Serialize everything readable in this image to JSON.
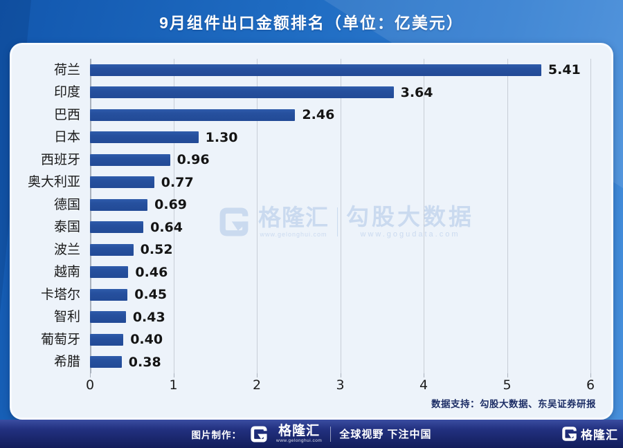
{
  "title": "9月组件出口金额排名（单位：亿美元）",
  "chart_data": {
    "type": "bar",
    "orientation": "horizontal",
    "title": "9月组件出口金额排名（单位：亿美元）",
    "categories": [
      "荷兰",
      "印度",
      "巴西",
      "日本",
      "西班牙",
      "奥大利亚",
      "德国",
      "泰国",
      "波兰",
      "越南",
      "卡塔尔",
      "智利",
      "葡萄牙",
      "希腊"
    ],
    "values": [
      5.41,
      3.64,
      2.46,
      1.3,
      0.96,
      0.77,
      0.69,
      0.64,
      0.52,
      0.46,
      0.45,
      0.43,
      0.4,
      0.38
    ],
    "value_labels": [
      "5.41",
      "3.64",
      "2.46",
      "1.30",
      "0.96",
      "0.77",
      "0.69",
      "0.64",
      "0.52",
      "0.46",
      "0.45",
      "0.43",
      "0.40",
      "0.38"
    ],
    "x_ticks": [
      "0",
      "1",
      "2",
      "3",
      "4",
      "5",
      "6"
    ],
    "xlim": [
      0,
      6
    ],
    "xlabel": "",
    "ylabel": "",
    "grid": "vertical-gridlines-on",
    "legend": "none",
    "bar_color": "#26509e"
  },
  "watermark": {
    "brand": "格隆汇",
    "brand_url": "www.gelonghui.com",
    "partner": "勾股大数据",
    "partner_url": "www.gogudata.com"
  },
  "source_note": "数据支持：勾股大数据、东吴证券研报",
  "footer": {
    "made_by_label": "图片制作：",
    "brand": "格隆汇",
    "brand_url": "www.gelonghui.com",
    "slogan": "全球视野 下注中国",
    "right_brand": "格隆汇"
  },
  "colors": {
    "background_blue": "#2272c8",
    "card_background": "#edf3fa",
    "bar": "#26509e",
    "footer_navy": "#121d5b",
    "title_text": "#ffffff",
    "watermark": "#c5d6ee"
  }
}
